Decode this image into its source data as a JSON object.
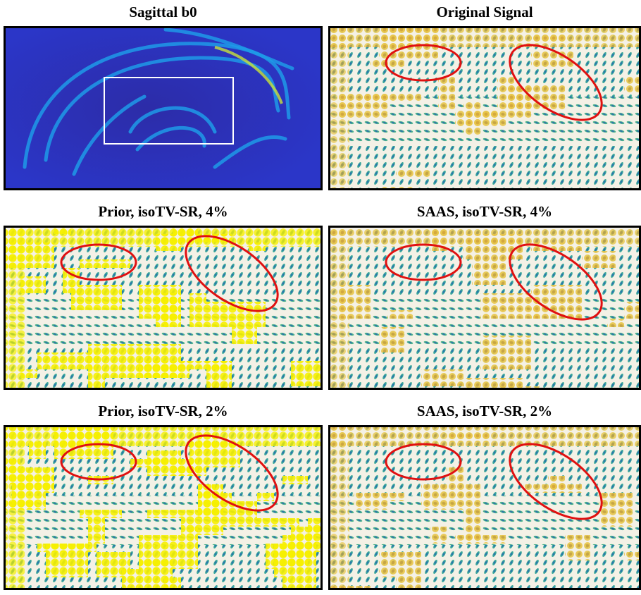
{
  "panels": [
    {
      "title": "Sagittal b0"
    },
    {
      "title": "Original Signal"
    },
    {
      "title": "Prior, isoTV-SR, 4%"
    },
    {
      "title": "SAAS, isoTV-SR, 4%"
    },
    {
      "title": "Prior, isoTV-SR, 2%"
    },
    {
      "title": "SAAS, isoTV-SR, 2%"
    }
  ]
}
